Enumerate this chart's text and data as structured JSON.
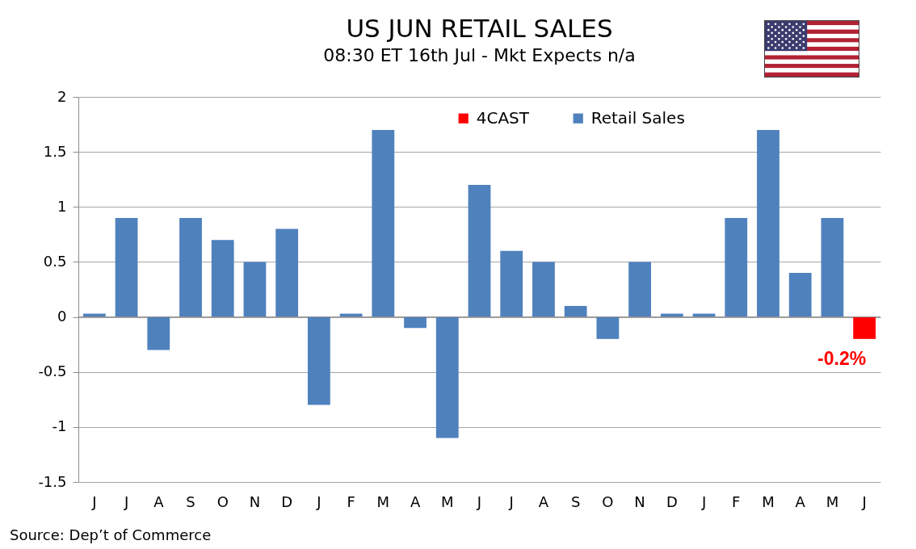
{
  "chart_data": {
    "type": "bar",
    "title": "US JUN RETAIL SALES",
    "subtitle": "08:30 ET 16th Jul - Mkt Expects n/a",
    "categories": [
      "J",
      "J",
      "A",
      "S",
      "O",
      "N",
      "D",
      "J",
      "F",
      "M",
      "A",
      "M",
      "J",
      "J",
      "A",
      "S",
      "O",
      "N",
      "D",
      "J",
      "F",
      "M",
      "A",
      "M",
      "J"
    ],
    "series": [
      {
        "name": "4CAST",
        "color": "#ff0000",
        "values": [
          null,
          null,
          null,
          null,
          null,
          null,
          null,
          null,
          null,
          null,
          null,
          null,
          null,
          null,
          null,
          null,
          null,
          null,
          null,
          null,
          null,
          null,
          null,
          null,
          -0.2
        ],
        "value_labels": [
          null,
          null,
          null,
          null,
          null,
          null,
          null,
          null,
          null,
          null,
          null,
          null,
          null,
          null,
          null,
          null,
          null,
          null,
          null,
          null,
          null,
          null,
          null,
          null,
          "-0.2%"
        ]
      },
      {
        "name": "Retail Sales",
        "color": "#4f81bd",
        "values": [
          0.03,
          0.9,
          -0.3,
          0.9,
          0.7,
          0.5,
          0.8,
          -0.8,
          0.03,
          1.7,
          -0.1,
          -1.1,
          1.2,
          0.6,
          0.5,
          0.1,
          -0.2,
          0.5,
          0.03,
          0.03,
          0.9,
          1.7,
          0.4,
          0.9,
          null
        ]
      }
    ],
    "ylim": [
      -1.5,
      2
    ],
    "yticks": [
      -1.5,
      -1,
      -0.5,
      0,
      0.5,
      1,
      1.5,
      2
    ],
    "grid": "y",
    "legend": "top",
    "annotations": [
      "Source: Dep’t of Commerce"
    ]
  }
}
